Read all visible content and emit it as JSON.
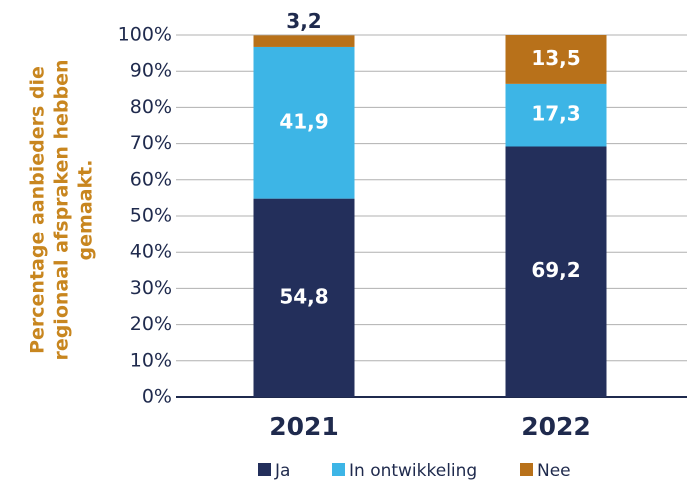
{
  "chart_data": {
    "type": "stacked_bar",
    "y_label": [
      "Percentage aanbieders die",
      "regionaal afspraken hebben",
      "gemaakt."
    ],
    "categories": [
      "2021",
      "2022"
    ],
    "series": [
      {
        "name": "Ja",
        "color": "#232f5b",
        "values": [
          54.8,
          69.2
        ],
        "value_labels": [
          "54,8",
          "69,2"
        ]
      },
      {
        "name": "In ontwikkeling",
        "color": "#3db5e6",
        "values": [
          41.9,
          17.3
        ],
        "value_labels": [
          "41,9",
          "17,3"
        ]
      },
      {
        "name": "Nee",
        "color": "#b8711a",
        "values": [
          3.2,
          13.5
        ],
        "value_labels": [
          "3,2",
          "13,5"
        ]
      }
    ],
    "ylim": [
      0,
      100
    ],
    "yticks": [
      {
        "value": 0,
        "label": "0%"
      },
      {
        "value": 10,
        "label": "10%"
      },
      {
        "value": 20,
        "label": "20%"
      },
      {
        "value": 30,
        "label": "30%"
      },
      {
        "value": 40,
        "label": "40%"
      },
      {
        "value": 50,
        "label": "50%"
      },
      {
        "value": 60,
        "label": "60%"
      },
      {
        "value": 70,
        "label": "70%"
      },
      {
        "value": 80,
        "label": "80%"
      },
      {
        "value": 90,
        "label": "90%"
      },
      {
        "value": 100,
        "label": "100%"
      }
    ],
    "grid": true,
    "legend": "bottom"
  }
}
